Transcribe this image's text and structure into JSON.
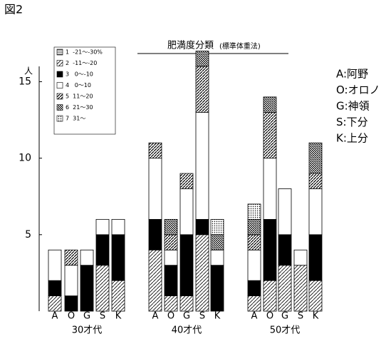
{
  "figure_label": "図2",
  "chart_data": {
    "type": "stacked-bar",
    "title": "肥満度分類",
    "subtitle": "(標準体重法)",
    "y_label": "人",
    "categories": [
      "A",
      "O",
      "G",
      "S",
      "K",
      "A",
      "O",
      "G",
      "S",
      "K",
      "A",
      "O",
      "G",
      "S",
      "K"
    ],
    "group_labels": [
      "30才代",
      "40才代",
      "50才代"
    ],
    "ylim": [
      0,
      16
    ],
    "yticks": [
      5,
      10,
      15
    ],
    "series": [
      {
        "name": "1  -21～-30%",
        "pattern": "hlines",
        "values": [
          0,
          0,
          0,
          0,
          0,
          0,
          0,
          0,
          0,
          0,
          0,
          0,
          0,
          0,
          0
        ]
      },
      {
        "name": "2  -11～-20",
        "pattern": "diag",
        "values": [
          1,
          0,
          0,
          3,
          2,
          4,
          1,
          1,
          5,
          0,
          1,
          2,
          3,
          3,
          2
        ]
      },
      {
        "name": "3   0～-10",
        "pattern": "black",
        "values": [
          1,
          1,
          3,
          2,
          3,
          2,
          2,
          4,
          1,
          3,
          1,
          4,
          2,
          0,
          3
        ]
      },
      {
        "name": "4   0～10",
        "pattern": "white",
        "values": [
          2,
          2,
          1,
          1,
          1,
          4,
          1,
          3,
          7,
          1,
          2,
          4,
          3,
          1,
          3
        ]
      },
      {
        "name": "5  11～20",
        "pattern": "diag2",
        "values": [
          0,
          1,
          0,
          0,
          0,
          1,
          1,
          1,
          3,
          0,
          1,
          3,
          0,
          0,
          1
        ]
      },
      {
        "name": "6  21～30",
        "pattern": "dense",
        "values": [
          0,
          0,
          0,
          0,
          0,
          0,
          1,
          0,
          1,
          1,
          1,
          1,
          0,
          0,
          2
        ]
      },
      {
        "name": "7  31～",
        "pattern": "dots",
        "values": [
          0,
          0,
          0,
          0,
          0,
          0,
          0,
          0,
          0,
          1,
          1,
          0,
          0,
          0,
          0
        ]
      }
    ]
  },
  "site_legend": [
    "A:阿野",
    "O:オロノ",
    "G:神領",
    "S:下分",
    "K:上分"
  ]
}
